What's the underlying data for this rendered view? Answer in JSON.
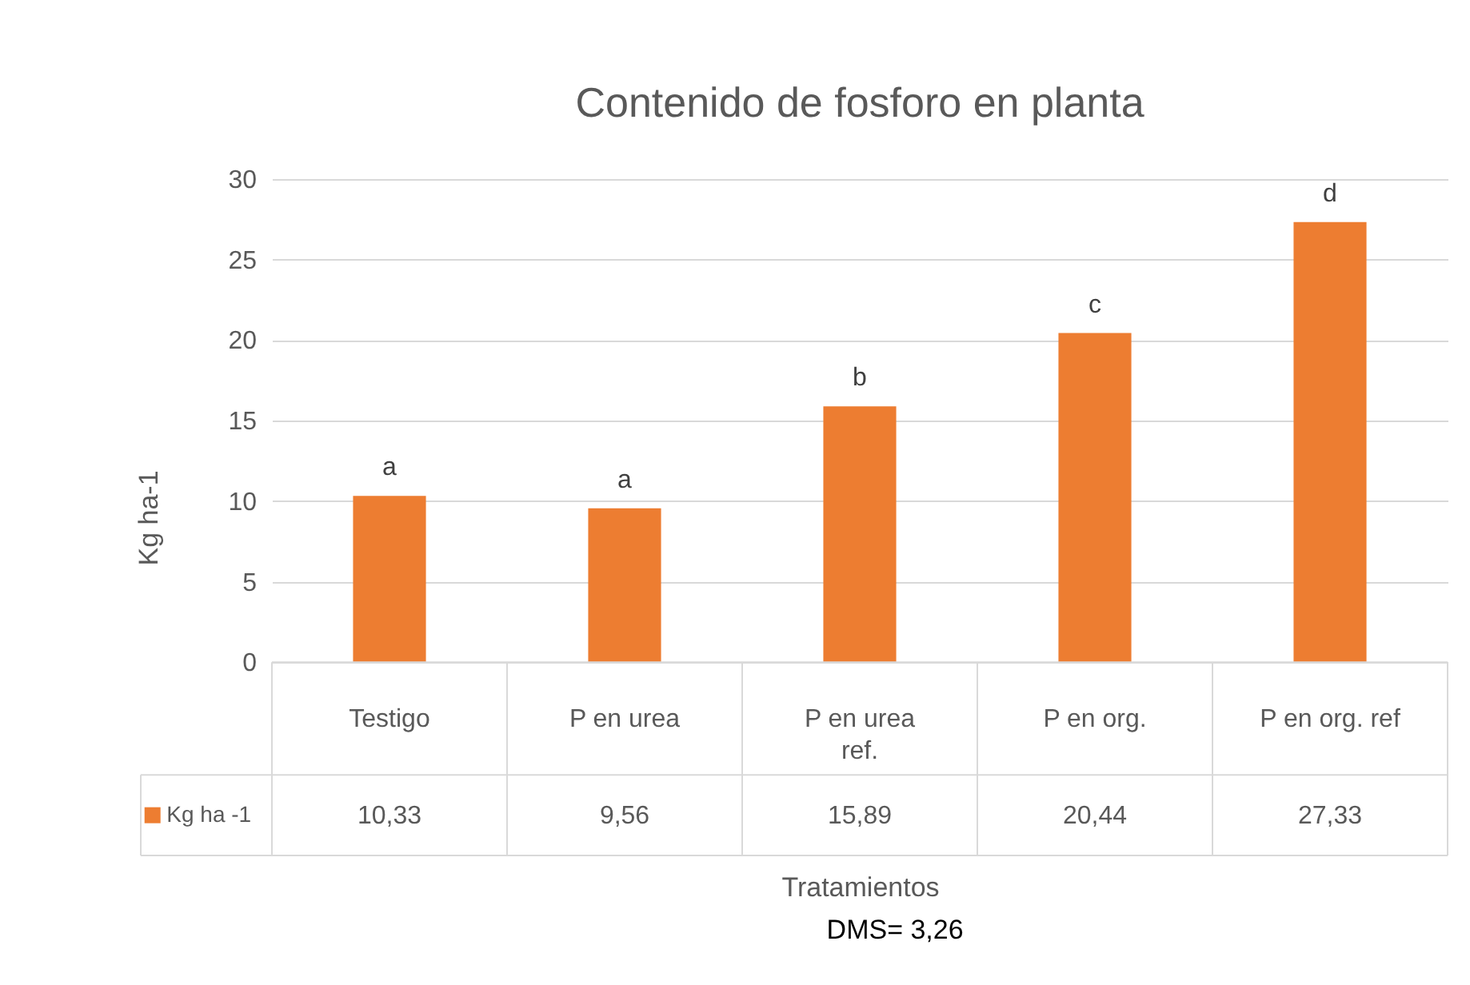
{
  "chart_data": {
    "type": "bar",
    "title": "Contenido de fosforo en planta",
    "xlabel": "Tratamientos",
    "ylabel": "Kg ha-1",
    "categories": [
      "Testigo",
      "P en urea",
      "P en urea ref.",
      "P en org.",
      "P en org. ref"
    ],
    "series": [
      {
        "name": "Kg ha -1",
        "color": "#ed7d31",
        "values": [
          10.33,
          9.56,
          15.89,
          20.44,
          27.33
        ],
        "value_labels": [
          "10,33",
          "9,56",
          "15,89",
          "20,44",
          "27,33"
        ]
      }
    ],
    "ylim": [
      0,
      30
    ],
    "yticks": [
      0,
      5,
      10,
      15,
      20,
      25,
      30
    ],
    "grid": "y",
    "legend": "bottom",
    "annotations": [
      {
        "text": "a",
        "x": "Testigo",
        "y": 10.33
      },
      {
        "text": "a",
        "x": "P en urea",
        "y": 9.56
      },
      {
        "text": "b",
        "x": "P en urea ref.",
        "y": 15.89
      },
      {
        "text": "c",
        "x": "P en org.",
        "y": 20.44
      },
      {
        "text": "d",
        "x": "P en org. ref",
        "y": 27.33
      },
      "DMS= 3,26"
    ]
  }
}
